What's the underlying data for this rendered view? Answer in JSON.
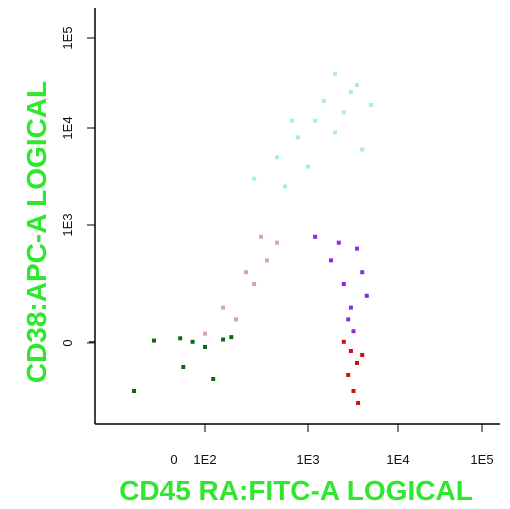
{
  "chart_data": {
    "type": "scatter",
    "title": "",
    "xlabel": "CD45 RA:FITC-A LOGICAL",
    "ylabel": "CD38:APC-A LOGICAL",
    "x_scale": "logicle",
    "y_scale": "logicle",
    "x_ticks": [
      "0",
      "1E2",
      "1E3",
      "1E4",
      "1E5"
    ],
    "y_ticks": [
      "0",
      "1E3",
      "1E4",
      "1E5"
    ],
    "label_color": "#2ee82e",
    "grid": false,
    "legend": "none",
    "series": [
      {
        "color": "#a8ecec",
        "points": [
          [
            300,
            3000
          ],
          [
            500,
            5000
          ],
          [
            800,
            8000
          ],
          [
            1200,
            12000
          ],
          [
            1500,
            20000
          ],
          [
            2000,
            9000
          ],
          [
            2500,
            15000
          ],
          [
            3000,
            25000
          ],
          [
            4000,
            6000
          ],
          [
            5000,
            18000
          ],
          [
            600,
            2500
          ],
          [
            1000,
            4000
          ],
          [
            3500,
            30000
          ],
          [
            700,
            12000
          ],
          [
            2000,
            40000
          ]
        ]
      },
      {
        "color": "#d0a0c8",
        "points": [
          [
            100,
            80
          ],
          [
            200,
            200
          ],
          [
            300,
            500
          ],
          [
            400,
            700
          ],
          [
            500,
            850
          ],
          [
            150,
            300
          ],
          [
            250,
            600
          ],
          [
            350,
            900
          ]
        ]
      },
      {
        "color": "#8a2be2",
        "points": [
          [
            1200,
            900
          ],
          [
            1800,
            700
          ],
          [
            2500,
            500
          ],
          [
            3000,
            300
          ],
          [
            3500,
            800
          ],
          [
            4000,
            600
          ],
          [
            2800,
            200
          ],
          [
            3200,
            100
          ],
          [
            2200,
            850
          ],
          [
            4500,
            400
          ]
        ]
      },
      {
        "color": "#cc1111",
        "points": [
          [
            2500,
            10
          ],
          [
            3000,
            -20
          ],
          [
            3500,
            -50
          ],
          [
            2800,
            -80
          ],
          [
            3200,
            -120
          ],
          [
            4000,
            -30
          ],
          [
            3600,
            -150
          ]
        ]
      },
      {
        "color": "#0a6b0a",
        "points": [
          [
            -50,
            20
          ],
          [
            20,
            40
          ],
          [
            60,
            10
          ],
          [
            100,
            -10
          ],
          [
            150,
            30
          ],
          [
            -100,
            -120
          ],
          [
            30,
            -60
          ],
          [
            120,
            -90
          ],
          [
            180,
            50
          ]
        ]
      }
    ]
  }
}
